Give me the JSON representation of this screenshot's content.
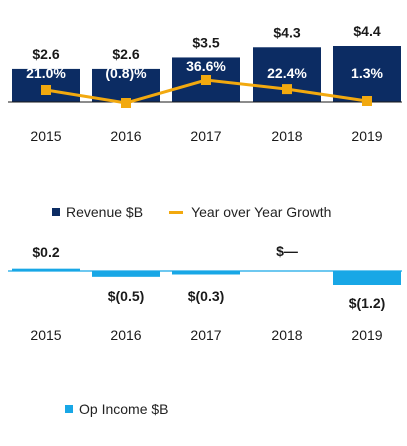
{
  "colors": {
    "revenue": "#0c2c63",
    "growth": "#f2a90f",
    "op_income": "#18a7e6",
    "axis": "#1a1a1a"
  },
  "chart_data": [
    {
      "type": "bar",
      "categories": [
        "2015",
        "2016",
        "2017",
        "2018",
        "2019"
      ],
      "series": [
        {
          "name": "Revenue $B",
          "values": [
            2.6,
            2.6,
            3.5,
            4.3,
            4.4
          ],
          "labels": [
            "$2.6",
            "$2.6",
            "$3.5",
            "$4.3",
            "$4.4"
          ]
        },
        {
          "name": "Year over Year Growth",
          "type": "line",
          "values": [
            21.0,
            -0.8,
            36.6,
            22.4,
            1.3
          ],
          "labels": [
            "21.0%",
            "(0.8)%",
            "36.6%",
            "22.4%",
            "1.3%"
          ]
        }
      ],
      "legend": "bottom-center",
      "grid": false
    },
    {
      "type": "bar",
      "categories": [
        "2015",
        "2016",
        "2017",
        "2018",
        "2019"
      ],
      "series": [
        {
          "name": "Op Income $B",
          "values": [
            0.2,
            -0.5,
            -0.3,
            0.0,
            -1.2
          ],
          "labels": [
            "$0.2",
            "$(0.5)",
            "$(0.3)",
            "$—",
            "$(1.2)"
          ]
        }
      ],
      "legend": "bottom-center",
      "grid": false
    }
  ]
}
